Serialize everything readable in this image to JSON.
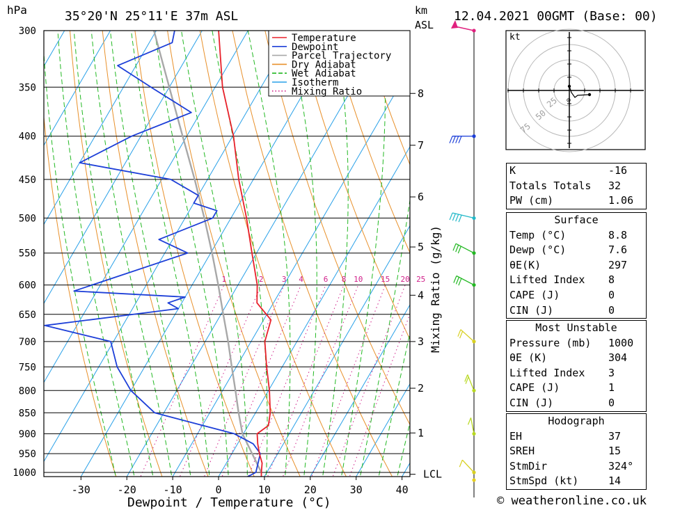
{
  "header": {
    "hpa_label": "hPa",
    "location": "35°20'N 25°11'E 37m ASL",
    "km_label": "km",
    "asl_label": "ASL",
    "datetime": "12.04.2021 00GMT (Base: 00)"
  },
  "colors": {
    "temperature": "#e8202a",
    "dewpoint": "#1d3fd8",
    "parcel": "#a8a8a8",
    "dry_adiabat": "#e8902a",
    "wet_adiabat": "#22b822",
    "isotherm": "#28a0e8",
    "mixing_ratio": "#d0208a"
  },
  "legend": {
    "temperature": "Temperature",
    "dewpoint": "Dewpoint",
    "parcel": "Parcel Trajectory",
    "dry_adiabat": "Dry Adiabat",
    "wet_adiabat": "Wet Adiabat",
    "isotherm": "Isotherm",
    "mixing_ratio": "Mixing Ratio"
  },
  "chart_data": {
    "type": "line",
    "title": "35°20'N 25°11'E 37m ASL",
    "xlabel": "Dewpoint / Temperature (°C)",
    "ylabel": "hPa",
    "y2label": "Mixing Ratio (g/kg)",
    "xlim": [
      -40,
      40
    ],
    "ylim": [
      1000,
      300
    ],
    "pressure_ticks": [
      300,
      350,
      400,
      450,
      500,
      550,
      600,
      650,
      700,
      750,
      800,
      850,
      900,
      950,
      1000
    ],
    "temperature_ticks": [
      "-30",
      "-20",
      "-10",
      "0",
      "10",
      "20",
      "30",
      "40"
    ],
    "height_ticks": [
      {
        "label": "8",
        "p": 356
      },
      {
        "label": "7",
        "p": 410
      },
      {
        "label": "6",
        "p": 472
      },
      {
        "label": "5",
        "p": 541
      },
      {
        "label": "4",
        "p": 617
      },
      {
        "label": "3",
        "p": 700
      },
      {
        "label": "2",
        "p": 795
      },
      {
        "label": "1",
        "p": 898
      },
      {
        "label": "LCL",
        "p": 1005
      }
    ],
    "mixing_ratio_labels": [
      "1",
      "2",
      "3",
      "4",
      "6",
      "8",
      "10",
      "15",
      "20",
      "25"
    ],
    "series": [
      {
        "name": "Temperature",
        "p": [
          1013,
          1000,
          975,
          950,
          925,
          900,
          880,
          850,
          800,
          750,
          700,
          660,
          630,
          600,
          550,
          500,
          450,
          400,
          350,
          300
        ],
        "t": [
          9.4,
          8.8,
          7.8,
          6.0,
          4.4,
          3.0,
          4.4,
          3.2,
          0.2,
          -3.4,
          -7.0,
          -8.4,
          -13.6,
          -15.8,
          -21.0,
          -26.6,
          -33.2,
          -39.8,
          -48.4,
          -56.4
        ]
      },
      {
        "name": "Dewpoint",
        "p": [
          1013,
          1000,
          950,
          925,
          900,
          850,
          800,
          750,
          700,
          670,
          640,
          630,
          620,
          610,
          550,
          530,
          500,
          490,
          480,
          470,
          450,
          430,
          400,
          375,
          350,
          330,
          310,
          300
        ],
        "t": [
          6.2,
          7.6,
          6.2,
          3.4,
          -2.0,
          -22.0,
          -30.0,
          -36.0,
          -40.6,
          -57.0,
          -30.0,
          -33.0,
          -30.0,
          -55.0,
          -35.0,
          -43.0,
          -34.0,
          -34.0,
          -40.0,
          -40.0,
          -48.0,
          -70.0,
          -62.0,
          -52.0,
          -64.0,
          -74.0,
          -65.0,
          -66.0
        ]
      },
      {
        "name": "Parcel Trajectory",
        "p": [
          1000,
          950,
          900,
          850,
          800,
          750,
          700,
          650,
          600,
          550,
          500,
          450,
          400,
          350,
          300
        ],
        "t": [
          8.8,
          4.4,
          -0.2,
          -3.7,
          -7.2,
          -11.0,
          -15.0,
          -19.5,
          -24.3,
          -29.7,
          -35.8,
          -42.8,
          -50.9,
          -60.0,
          -70.5
        ]
      }
    ]
  },
  "wind_profile": {
    "levels": [
      {
        "p": 300,
        "speed_kt": 30,
        "dir_deg": 270
      },
      {
        "p": 400,
        "speed_kt": 35,
        "dir_deg": 270
      },
      {
        "p": 500,
        "speed_kt": 40,
        "dir_deg": 285
      },
      {
        "p": 550,
        "speed_kt": 30,
        "dir_deg": 300
      },
      {
        "p": 600,
        "speed_kt": 25,
        "dir_deg": 300
      },
      {
        "p": 700,
        "speed_kt": 15,
        "dir_deg": 315
      },
      {
        "p": 800,
        "speed_kt": 15,
        "dir_deg": 340
      },
      {
        "p": 900,
        "speed_kt": 10,
        "dir_deg": 350
      },
      {
        "p": 1000,
        "speed_kt": 10,
        "dir_deg": 320
      }
    ]
  },
  "hodograph": {
    "unit_label": "kt",
    "ring_labels": [
      "25",
      "50",
      "75"
    ]
  },
  "indices": [
    {
      "label": "K",
      "value": "-16"
    },
    {
      "label": "Totals Totals",
      "value": "32"
    },
    {
      "label": "PW (cm)",
      "value": "1.06"
    }
  ],
  "surface": {
    "title": "Surface",
    "rows": [
      {
        "label": "Temp (°C)",
        "value": "8.8"
      },
      {
        "label": "Dewp (°C)",
        "value": "7.6"
      },
      {
        "label": "θE(K)",
        "value": "297"
      },
      {
        "label": "Lifted Index",
        "value": "8"
      },
      {
        "label": "CAPE (J)",
        "value": "0"
      },
      {
        "label": "CIN (J)",
        "value": "0"
      }
    ]
  },
  "most_unstable": {
    "title": "Most Unstable",
    "rows": [
      {
        "label": "Pressure (mb)",
        "value": "1000"
      },
      {
        "label": "θE (K)",
        "value": "304"
      },
      {
        "label": "Lifted Index",
        "value": "3"
      },
      {
        "label": "CAPE (J)",
        "value": "1"
      },
      {
        "label": "CIN (J)",
        "value": "0"
      }
    ]
  },
  "hodograph_table": {
    "title": "Hodograph",
    "rows": [
      {
        "label": "EH",
        "value": "37"
      },
      {
        "label": "SREH",
        "value": "15"
      },
      {
        "label": "StmDir",
        "value": "324°"
      },
      {
        "label": "StmSpd (kt)",
        "value": "14"
      }
    ]
  },
  "footer": {
    "credit": "© weatheronline.co.uk"
  }
}
